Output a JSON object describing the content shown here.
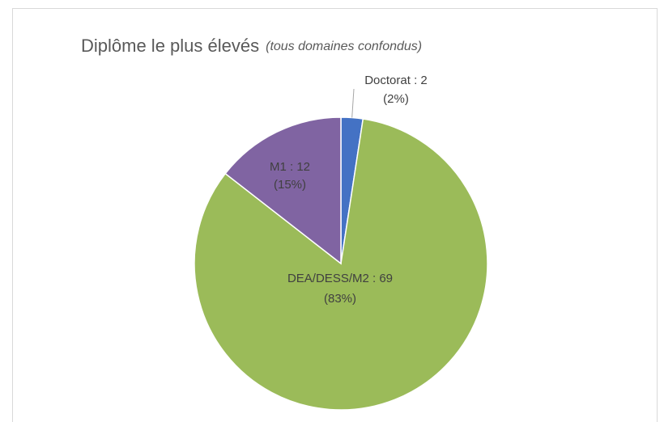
{
  "chart_data": {
    "type": "pie",
    "title": "Diplôme le plus élevés",
    "subtitle": "(tous domaines confondus)",
    "values": [
      2,
      69,
      12
    ],
    "value_labels": [
      "Doctorat : 2",
      "DEA/DESS/M2 : 69",
      "M1 : 12"
    ],
    "percent_labels": [
      "(2%)",
      "(83%)",
      "(15%)"
    ],
    "colors": [
      "#4472c4",
      "#9bbb59",
      "#8064a2"
    ]
  }
}
